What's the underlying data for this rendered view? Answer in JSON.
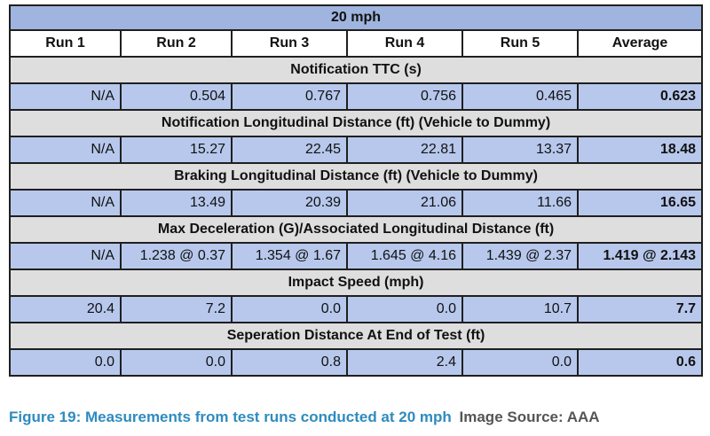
{
  "table": {
    "title": "20 mph",
    "headers": [
      "Run 1",
      "Run 2",
      "Run 3",
      "Run 4",
      "Run 5",
      "Average"
    ],
    "sections": [
      {
        "title": "Notification TTC (s)",
        "values": [
          "N/A",
          "0.504",
          "0.767",
          "0.756",
          "0.465",
          "0.623"
        ]
      },
      {
        "title": "Notification Longitudinal Distance (ft) (Vehicle to Dummy)",
        "values": [
          "N/A",
          "15.27",
          "22.45",
          "22.81",
          "13.37",
          "18.48"
        ]
      },
      {
        "title": "Braking Longitudinal Distance (ft) (Vehicle to Dummy)",
        "values": [
          "N/A",
          "13.49",
          "20.39",
          "21.06",
          "11.66",
          "16.65"
        ]
      },
      {
        "title": "Max Deceleration (G)/Associated Longitudinal Distance (ft)",
        "values": [
          "N/A",
          "1.238 @ 0.37",
          "1.354 @ 1.67",
          "1.645 @ 4.16",
          "1.439 @ 2.37",
          "1.419 @ 2.143"
        ]
      },
      {
        "title": "Impact Speed (mph)",
        "values": [
          "20.4",
          "7.2",
          "0.0",
          "0.0",
          "10.7",
          "7.7"
        ]
      },
      {
        "title": "Seperation Distance At End of Test (ft)",
        "values": [
          "0.0",
          "0.0",
          "0.8",
          "2.4",
          "0.0",
          "0.6"
        ]
      }
    ]
  },
  "caption": {
    "figure": "Figure 19: Measurements from test runs conducted at 20 mph",
    "source": "Image Source: AAA"
  },
  "colors": {
    "title_bg": "#9fb4de",
    "section_bg": "#dedede",
    "data_bg": "#b7c8ec",
    "caption_blue": "#2e8bbf"
  }
}
